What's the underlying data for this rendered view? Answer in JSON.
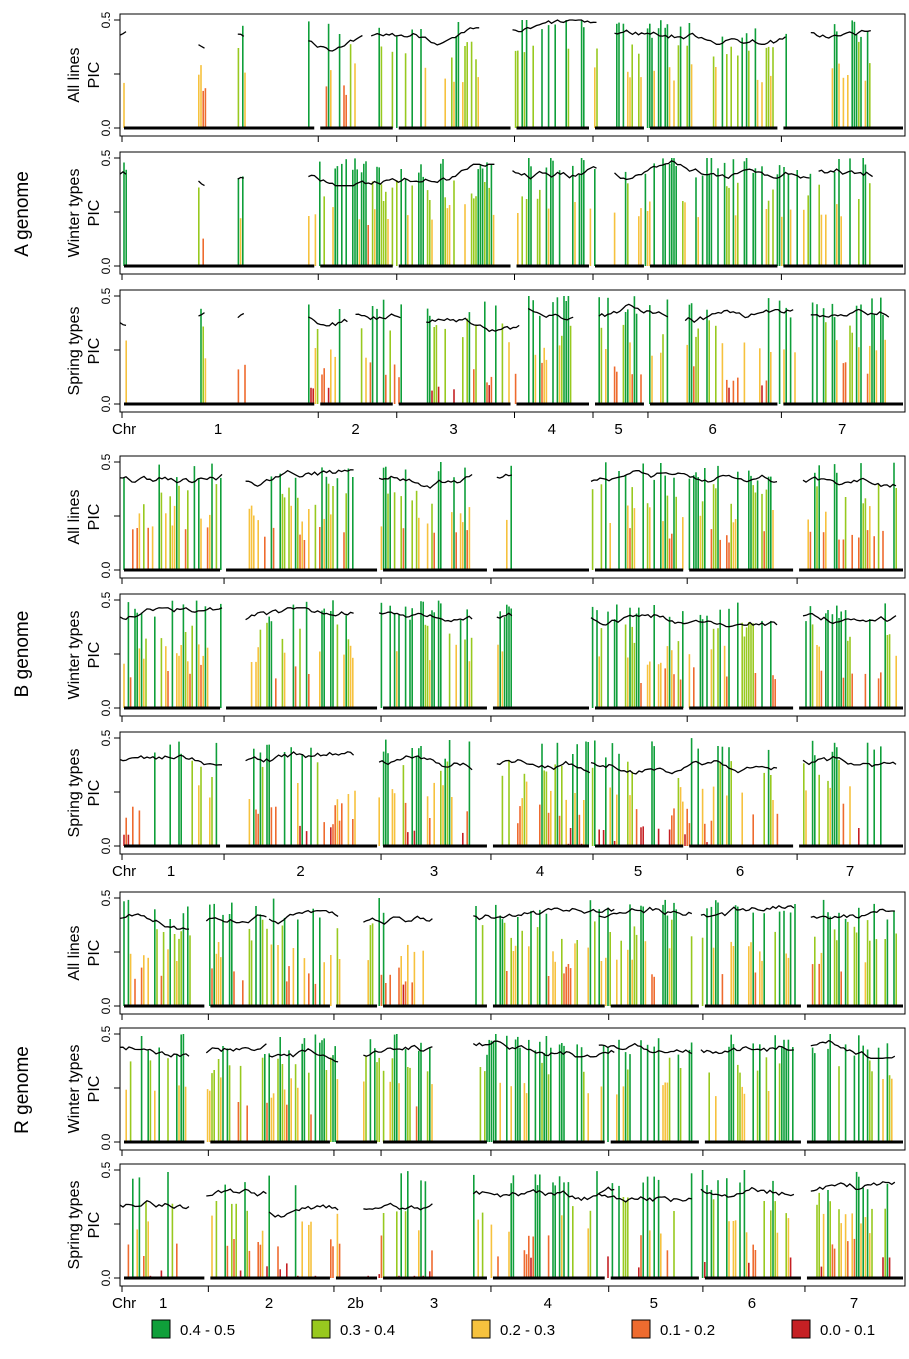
{
  "chart_data": {
    "type": "bar",
    "y_label": "PIC",
    "y_ticks": [
      "0.0",
      "0.5"
    ],
    "y_mid_tick": "0.25",
    "ylim": [
      0,
      0.5
    ],
    "legend_placement": "bottom",
    "legend": [
      {
        "label": "0.4 - 0.5",
        "color": "#0f9f3a"
      },
      {
        "label": "0.3 - 0.4",
        "color": "#98c91f"
      },
      {
        "label": "0.2 - 0.3",
        "color": "#f6c23e"
      },
      {
        "label": "0.1 - 0.2",
        "color": "#ee6b2f"
      },
      {
        "label": "0.0 - 0.1",
        "color": "#c52024"
      }
    ],
    "moving_average_color": "#000000",
    "genomes": [
      {
        "name": "A genome",
        "chr_axis_title": "Chr",
        "chromosomes": [
          {
            "label": "1",
            "start": 0.0,
            "end": 0.25
          },
          {
            "label": "2",
            "start": 0.25,
            "end": 0.35
          },
          {
            "label": "3",
            "start": 0.35,
            "end": 0.5
          },
          {
            "label": "4",
            "start": 0.5,
            "end": 0.6
          },
          {
            "label": "5",
            "start": 0.6,
            "end": 0.67
          },
          {
            "label": "6",
            "start": 0.67,
            "end": 0.84
          },
          {
            "label": "7",
            "start": 0.84,
            "end": 1.0
          }
        ],
        "panels": [
          {
            "name": "All lines",
            "segments": [
              [
                0.0,
                0.01,
                0.68
              ],
              [
                0.1,
                0.11,
                0.55
              ],
              [
                0.15,
                0.16,
                0.72
              ],
              [
                0.24,
                0.31,
                0.58
              ],
              [
                0.32,
                0.46,
                0.62
              ],
              [
                0.5,
                0.61,
                0.8
              ],
              [
                0.63,
                0.85,
                0.72
              ],
              [
                0.88,
                0.96,
                0.7
              ]
            ],
            "variation": 0.3
          },
          {
            "name": "Winter types",
            "segments": [
              [
                0.0,
                0.01,
                0.68
              ],
              [
                0.1,
                0.11,
                0.5
              ],
              [
                0.15,
                0.16,
                0.55
              ],
              [
                0.24,
                0.48,
                0.65
              ],
              [
                0.5,
                0.61,
                0.78
              ],
              [
                0.63,
                0.88,
                0.75
              ],
              [
                0.89,
                0.96,
                0.72
              ]
            ],
            "variation": 0.3
          },
          {
            "name": "Spring types",
            "segments": [
              [
                0.0,
                0.01,
                0.48
              ],
              [
                0.1,
                0.11,
                0.55
              ],
              [
                0.15,
                0.16,
                0.55
              ],
              [
                0.24,
                0.29,
                0.52
              ],
              [
                0.3,
                0.36,
                0.62
              ],
              [
                0.39,
                0.51,
                0.45
              ],
              [
                0.52,
                0.58,
                0.7
              ],
              [
                0.61,
                0.7,
                0.62
              ],
              [
                0.72,
                0.86,
                0.5
              ],
              [
                0.88,
                0.98,
                0.65
              ]
            ],
            "variation": 0.4
          }
        ]
      },
      {
        "name": "B genome",
        "chr_axis_title": "Chr",
        "chromosomes": [
          {
            "label": "1",
            "start": 0.0,
            "end": 0.13
          },
          {
            "label": "2",
            "start": 0.13,
            "end": 0.33
          },
          {
            "label": "3",
            "start": 0.33,
            "end": 0.47
          },
          {
            "label": "4",
            "start": 0.47,
            "end": 0.6
          },
          {
            "label": "5",
            "start": 0.6,
            "end": 0.72
          },
          {
            "label": "6",
            "start": 0.72,
            "end": 0.86
          },
          {
            "label": "7",
            "start": 0.86,
            "end": 1.0
          }
        ],
        "panels": [
          {
            "name": "All lines",
            "segments": [
              [
                0.0,
                0.13,
                0.65
              ],
              [
                0.16,
                0.3,
                0.62
              ],
              [
                0.33,
                0.45,
                0.68
              ],
              [
                0.48,
                0.5,
                0.7
              ],
              [
                0.6,
                0.84,
                0.6
              ],
              [
                0.87,
                0.99,
                0.62
              ]
            ],
            "variation": 0.35
          },
          {
            "name": "Winter types",
            "segments": [
              [
                0.0,
                0.13,
                0.62
              ],
              [
                0.16,
                0.3,
                0.62
              ],
              [
                0.33,
                0.45,
                0.68
              ],
              [
                0.48,
                0.5,
                0.68
              ],
              [
                0.6,
                0.84,
                0.58
              ],
              [
                0.87,
                0.99,
                0.62
              ]
            ],
            "variation": 0.35
          },
          {
            "name": "Spring types",
            "segments": [
              [
                0.0,
                0.13,
                0.55
              ],
              [
                0.16,
                0.3,
                0.55
              ],
              [
                0.33,
                0.45,
                0.55
              ],
              [
                0.48,
                0.6,
                0.45
              ],
              [
                0.6,
                0.84,
                0.45
              ],
              [
                0.87,
                0.99,
                0.55
              ]
            ],
            "variation": 0.45
          }
        ]
      },
      {
        "name": "R genome",
        "chr_axis_title": "Chr",
        "chromosomes": [
          {
            "label": "1",
            "start": 0.0,
            "end": 0.11
          },
          {
            "label": "2",
            "start": 0.11,
            "end": 0.27
          },
          {
            "label": "2b",
            "start": 0.27,
            "end": 0.33
          },
          {
            "label": "3",
            "start": 0.33,
            "end": 0.47
          },
          {
            "label": "4",
            "start": 0.47,
            "end": 0.62
          },
          {
            "label": "5",
            "start": 0.62,
            "end": 0.74
          },
          {
            "label": "6",
            "start": 0.74,
            "end": 0.87
          },
          {
            "label": "7",
            "start": 0.87,
            "end": 1.0
          }
        ],
        "panels": [
          {
            "name": "All lines",
            "segments": [
              [
                0.0,
                0.09,
                0.58
              ],
              [
                0.11,
                0.19,
                0.55
              ],
              [
                0.19,
                0.28,
                0.52
              ],
              [
                0.31,
                0.4,
                0.45
              ],
              [
                0.45,
                0.63,
                0.62
              ],
              [
                0.61,
                0.73,
                0.62
              ],
              [
                0.74,
                0.86,
                0.62
              ],
              [
                0.88,
                0.99,
                0.62
              ]
            ],
            "variation": 0.35
          },
          {
            "name": "Winter types",
            "segments": [
              [
                0.0,
                0.09,
                0.75
              ],
              [
                0.11,
                0.19,
                0.6
              ],
              [
                0.19,
                0.28,
                0.55
              ],
              [
                0.31,
                0.4,
                0.62
              ],
              [
                0.45,
                0.63,
                0.75
              ],
              [
                0.61,
                0.73,
                0.72
              ],
              [
                0.74,
                0.86,
                0.72
              ],
              [
                0.88,
                0.99,
                0.72
              ]
            ],
            "variation": 0.3
          },
          {
            "name": "Spring types",
            "segments": [
              [
                0.0,
                0.09,
                0.3
              ],
              [
                0.11,
                0.19,
                0.45
              ],
              [
                0.19,
                0.28,
                0.18
              ],
              [
                0.31,
                0.4,
                0.25
              ],
              [
                0.45,
                0.63,
                0.55
              ],
              [
                0.61,
                0.73,
                0.5
              ],
              [
                0.74,
                0.86,
                0.58
              ],
              [
                0.88,
                0.99,
                0.55
              ]
            ],
            "variation": 0.45
          }
        ]
      }
    ]
  }
}
